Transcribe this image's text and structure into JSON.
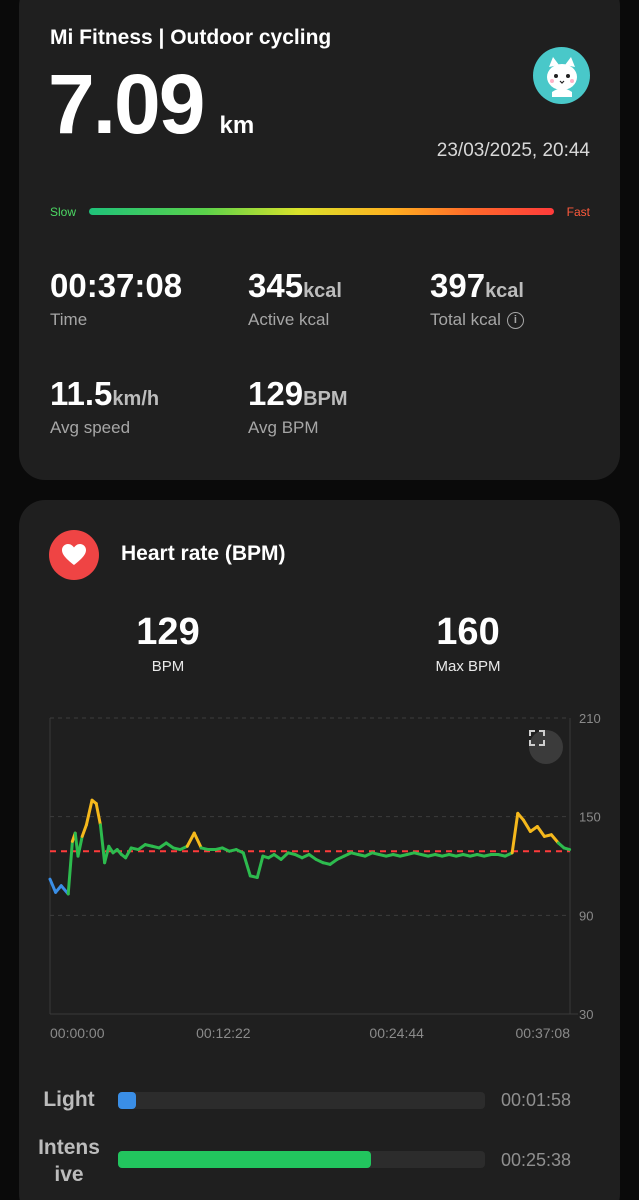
{
  "summary": {
    "app_title": "Mi Fitness | Outdoor cycling",
    "distance_value": "7.09",
    "distance_unit": "km",
    "datetime": "23/03/2025, 20:44",
    "speed_slow_label": "Slow",
    "speed_fast_label": "Fast",
    "stats": {
      "time": {
        "value": "00:37:08",
        "unit": "",
        "label": "Time"
      },
      "active_kcal": {
        "value": "345",
        "unit": "kcal",
        "label": "Active kcal"
      },
      "total_kcal": {
        "value": "397",
        "unit": "kcal",
        "label": "Total kcal"
      },
      "avg_speed": {
        "value": "11.5",
        "unit": "km/h",
        "label": "Avg speed"
      },
      "avg_bpm": {
        "value": "129",
        "unit": "BPM",
        "label": "Avg BPM"
      }
    }
  },
  "heart_rate": {
    "title": "Heart rate (BPM)",
    "avg_value": "129",
    "avg_label": "BPM",
    "max_value": "160",
    "max_label": "Max BPM",
    "zones": [
      {
        "label": "Light",
        "time": "00:01:58",
        "fraction": 0.05,
        "color": "#3a8ee6"
      },
      {
        "label": "Intens\nive",
        "time": "00:25:38",
        "fraction": 0.69,
        "color": "#22c55e"
      }
    ]
  },
  "chart_data": {
    "type": "line",
    "title": "",
    "xlabel": "",
    "ylabel": "",
    "x_ticks": [
      "00:00:00",
      "00:12:22",
      "00:24:44",
      "00:37:08"
    ],
    "y_ticks": [
      "210",
      "150",
      "90",
      "30"
    ],
    "ylim": [
      30,
      210
    ],
    "xlim_minutes": [
      0,
      37.13
    ],
    "reference_line": {
      "value": 129,
      "style": "dashed",
      "color": "#ff3b3b"
    },
    "zone_colors": {
      "below_110": "#3a8ee6",
      "110_to_134": "#2dbb4e",
      "above_134": "#f5b81c"
    },
    "series": [
      {
        "x": [
          0,
          0.4,
          0.8,
          1.3,
          1.6,
          1.8,
          2.0,
          2.3,
          2.6,
          3.0,
          3.3,
          3.6,
          3.9,
          4.2,
          4.5,
          4.8,
          5.1,
          5.4,
          5.8,
          6.3,
          6.8,
          7.3,
          7.8,
          8.3,
          8.8,
          9.3,
          9.8,
          10.3,
          10.8,
          11.3,
          11.8,
          12.3,
          12.8,
          13.3,
          13.8,
          14.3,
          14.8,
          15.2,
          15.6,
          16.0,
          16.5,
          17.0,
          17.5,
          18.0,
          18.5,
          19.0,
          19.5,
          20.0,
          20.5,
          21.0,
          21.5,
          22.0,
          22.5,
          23.0,
          23.5,
          24.0,
          24.5,
          25.0,
          25.5,
          26.0,
          26.5,
          27.0,
          27.5,
          28.0,
          28.5,
          29.0,
          29.5,
          30.0,
          30.5,
          31.0,
          31.5,
          32.0,
          32.5,
          33.0,
          33.4,
          33.8,
          34.3,
          34.8,
          35.3,
          35.8,
          36.3,
          36.7,
          37.1
        ],
        "y": [
          112,
          104,
          108,
          103,
          135,
          140,
          126,
          138,
          145,
          160,
          158,
          145,
          122,
          132,
          128,
          130,
          127,
          125,
          131,
          130,
          133,
          132,
          131,
          134,
          131,
          130,
          132,
          140,
          131,
          130,
          130,
          131,
          129,
          130,
          128,
          114,
          113,
          126,
          125,
          127,
          124,
          128,
          127,
          125,
          127,
          124,
          122,
          121,
          124,
          126,
          128,
          127,
          126,
          128,
          127,
          126,
          127,
          126,
          127,
          128,
          127,
          126,
          127,
          126,
          127,
          126,
          127,
          126,
          127,
          126,
          127,
          127,
          126,
          128,
          152,
          148,
          141,
          144,
          138,
          139,
          134,
          131,
          130
        ]
      }
    ]
  }
}
